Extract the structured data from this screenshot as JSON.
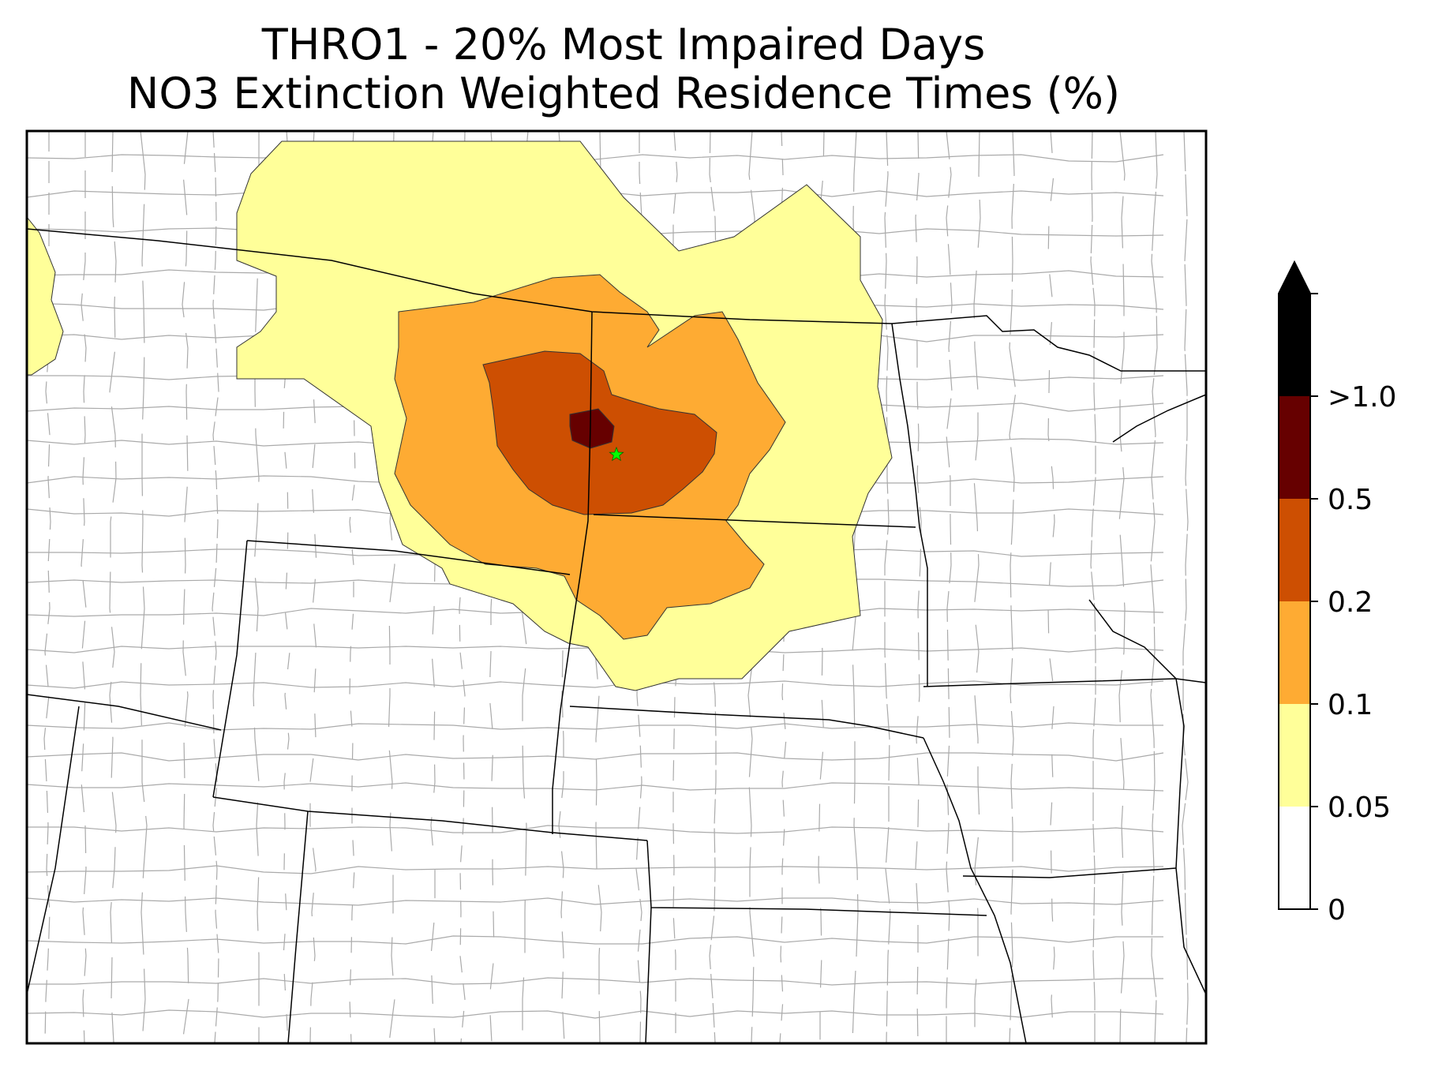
{
  "title": {
    "line1": "THRO1 - 20% Most Impaired Days",
    "line2": "NO3 Extinction Weighted Residence Times (%)"
  },
  "map": {
    "site_marker": "green-star-icon",
    "site_marker_color": "#00ff00",
    "background_color": "#ffffff",
    "state_border_color": "#000000",
    "county_border_color": "#aaaaaa"
  },
  "colorbar": {
    "extend": "max",
    "extend_color": "#000000",
    "bins": [
      {
        "label": "0",
        "color": "#ffffff"
      },
      {
        "label": "0.05",
        "color": "#ffff99"
      },
      {
        "label": "0.1",
        "color": "#feab33"
      },
      {
        "label": "0.2",
        "color": "#cd4f02"
      },
      {
        "label": "0.5",
        "color": "#660000"
      },
      {
        "label": ">1.0",
        "color": "#000000"
      }
    ]
  }
}
